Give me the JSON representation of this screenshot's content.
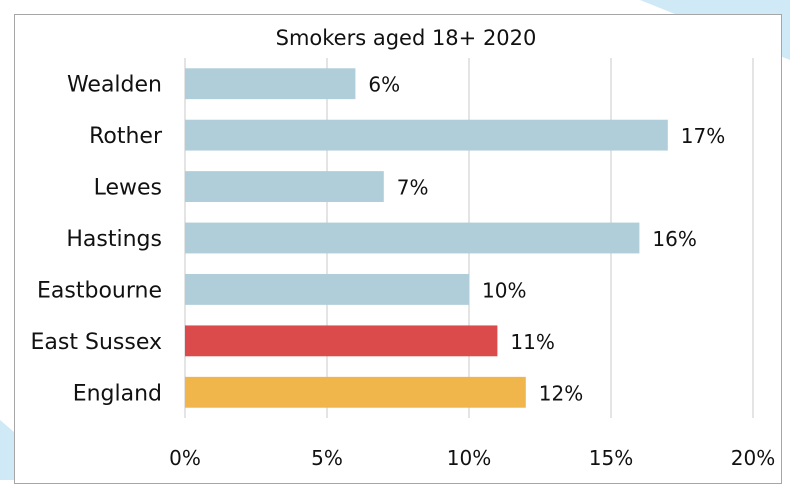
{
  "chart_data": {
    "type": "bar",
    "orientation": "horizontal",
    "title": "Smokers aged 18+ 2020",
    "categories": [
      "Wealden",
      "Rother",
      "Lewes",
      "Hastings",
      "Eastbourne",
      "East Sussex",
      "England"
    ],
    "values": [
      6,
      17,
      7,
      16,
      10,
      11,
      12
    ],
    "value_labels": [
      "6%",
      "17%",
      "7%",
      "16%",
      "10%",
      "11%",
      "12%"
    ],
    "bar_colors": [
      "#b0ced9",
      "#b0ced9",
      "#b0ced9",
      "#b0ced9",
      "#b0ced9",
      "#dc4b4b",
      "#f1b64b"
    ],
    "xlim": [
      0,
      20
    ],
    "xticks": [
      0,
      5,
      10,
      15,
      20
    ],
    "xtick_labels": [
      "0%",
      "5%",
      "10%",
      "15%",
      "20%"
    ],
    "grid": "vertical",
    "legend": "none"
  }
}
